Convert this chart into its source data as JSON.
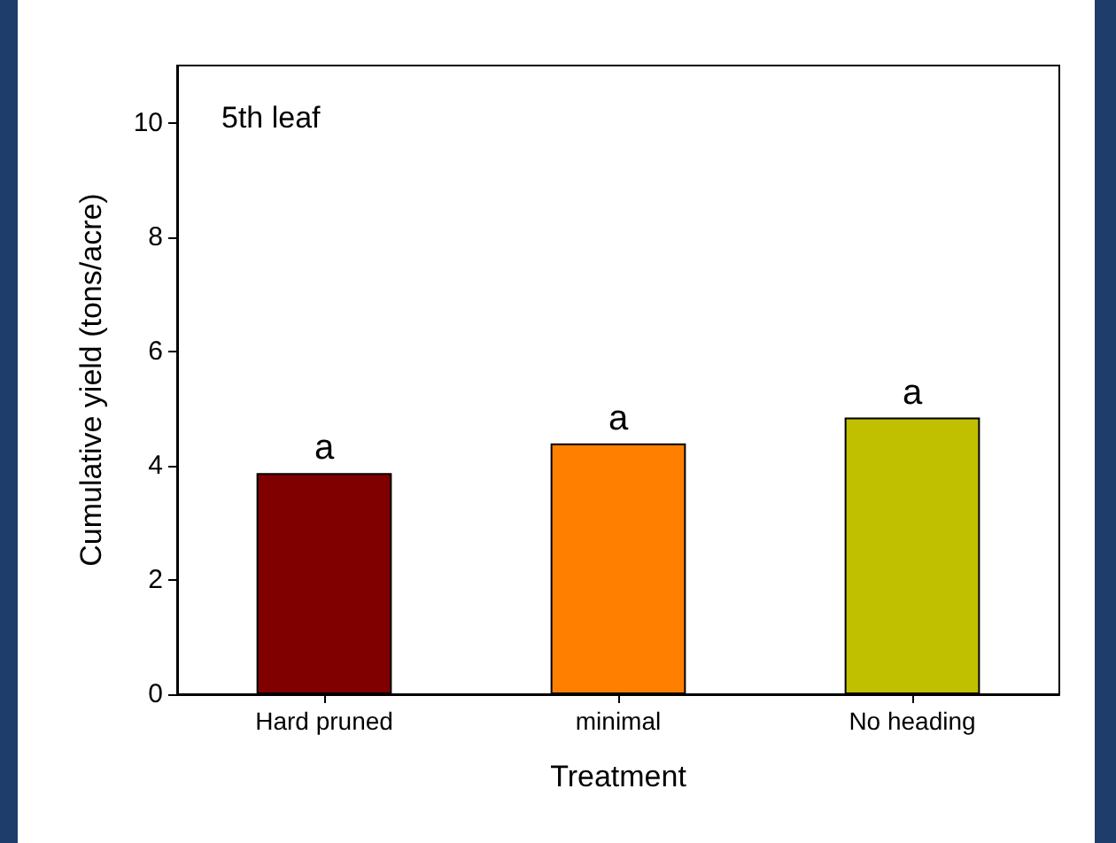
{
  "chart_data": {
    "type": "bar",
    "xlabel": "Treatment",
    "ylabel": "Cumulative yield (tons/acre)",
    "categories": [
      "Hard pruned",
      "minimal",
      "No heading"
    ],
    "values": [
      3.87,
      4.39,
      4.84
    ],
    "colors": [
      "#800000",
      "#ff8000",
      "#c0c000"
    ],
    "ylim": [
      0,
      11
    ],
    "yticks": [
      0,
      2,
      4,
      6,
      8,
      10
    ],
    "grid": false,
    "annotations": [
      "5th leaf",
      {
        "text": "a",
        "x": "Hard pruned",
        "y": 3.87
      },
      {
        "text": "a",
        "x": "minimal",
        "y": 4.39
      },
      {
        "text": "a",
        "x": "No heading",
        "y": 4.84
      }
    ]
  }
}
